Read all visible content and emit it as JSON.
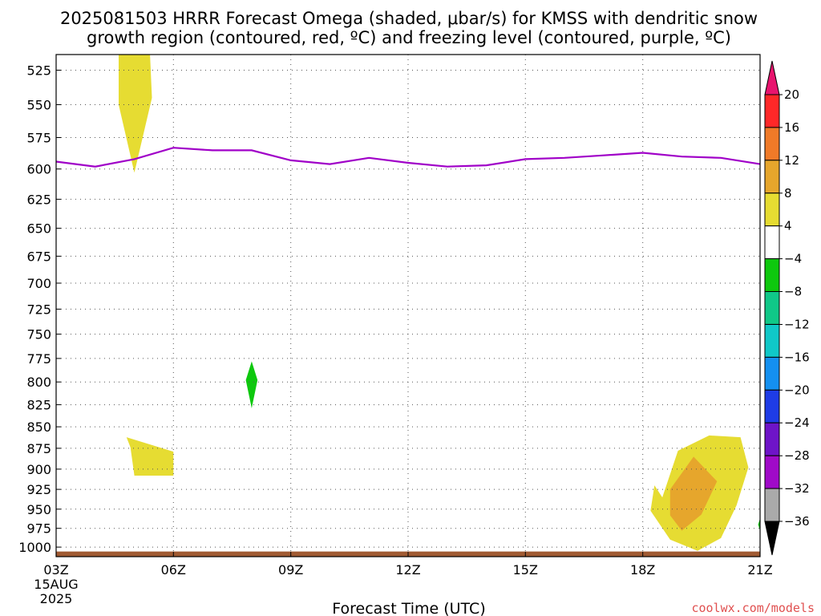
{
  "title_lines": [
    "2025081503 HRRR Forecast Omega (shaded, μbar/s) for KMSS with dendritic snow",
    "growth region (contoured, red, ºC) and freezing level (contoured, purple, ºC)"
  ],
  "credit": "coolwx.com/models",
  "chart_data": {
    "type": "time-height cross-section",
    "title": "2025081503 HRRR Forecast Omega (shaded, μbar/s) for KMSS with dendritic snow growth region (contoured, red, ºC) and freezing level (contoured, purple, ºC)",
    "xlabel": "Forecast Time (UTC)",
    "x_ticks": [
      "03Z",
      "06Z",
      "09Z",
      "12Z",
      "15Z",
      "18Z",
      "21Z"
    ],
    "x_hours": [
      3,
      6,
      9,
      12,
      15,
      18,
      21
    ],
    "x_first_tick_extra": [
      "15AUG",
      "2025"
    ],
    "xlim_hours": [
      3,
      21
    ],
    "y_ticks": [
      525,
      550,
      575,
      600,
      625,
      650,
      675,
      700,
      725,
      750,
      775,
      800,
      825,
      850,
      875,
      900,
      925,
      950,
      975,
      1000
    ],
    "ylim_hPa": [
      1013,
      514
    ],
    "y_scale": "log-pressure",
    "grid": true,
    "colorbar": {
      "labels": [
        "20",
        "16",
        "12",
        "8",
        "4",
        "−4",
        "−8",
        "−12",
        "−16",
        "−20",
        "−24",
        "−28",
        "−32",
        "−36"
      ],
      "top_arrow_color": "#e8146e",
      "bottom_arrow_color": "#000000",
      "colors": [
        "#ff2828",
        "#f07a28",
        "#e6a62c",
        "#e6dc32",
        "#ffffff",
        "#0ec80e",
        "#10c888",
        "#10c8c8",
        "#1490f0",
        "#1e3ce6",
        "#6e14c8",
        "#a00ac8",
        "#aaaaaa"
      ]
    },
    "freezing_level": {
      "color": "#a000c8",
      "hours": [
        3,
        4,
        5,
        6,
        7,
        8,
        9,
        10,
        11,
        12,
        13,
        14,
        15,
        16,
        17,
        18,
        19,
        20,
        21
      ],
      "pressure_hPa": [
        594,
        598,
        592,
        583,
        585,
        585,
        593,
        596,
        591,
        595,
        598,
        597,
        592,
        591,
        589,
        587,
        590,
        591,
        596
      ]
    },
    "shaded_regions": [
      {
        "color": "#e6dc32",
        "hours": [
          4.6,
          5.4,
          5.45,
          5.0,
          4.6
        ],
        "pressure_hPa": [
          514,
          514,
          545,
          603,
          550
        ]
      },
      {
        "color": "#e6dc32",
        "hours": [
          4.8,
          6.0,
          6.0,
          5.0,
          4.9
        ],
        "pressure_hPa": [
          862,
          879,
          908,
          908,
          874
        ]
      },
      {
        "color": "#0ec80e",
        "hours": [
          8.0,
          8.15,
          8.0,
          7.85
        ],
        "pressure_hPa": [
          778,
          798,
          829,
          798
        ]
      },
      {
        "color": "#e6dc32",
        "hours": [
          18.5,
          18.9,
          19.7,
          20.5,
          20.7,
          20.4,
          20.0,
          19.4,
          18.7,
          18.2,
          18.3
        ],
        "pressure_hPa": [
          935,
          878,
          860,
          862,
          898,
          945,
          988,
          1005,
          990,
          952,
          920
        ]
      },
      {
        "color": "#e6a62c",
        "hours": [
          18.7,
          19.3,
          19.9,
          19.5,
          19.0,
          18.7
        ],
        "pressure_hPa": [
          925,
          885,
          915,
          957,
          978,
          958
        ]
      },
      {
        "color": "#0ec80e",
        "hours": [
          21.0,
          20.95,
          21.0
        ],
        "pressure_hPa": [
          962,
          970,
          978
        ]
      }
    ],
    "surface_band": {
      "color": "#a05a32",
      "pressure_hPa": [
        1006,
        1013
      ]
    }
  }
}
